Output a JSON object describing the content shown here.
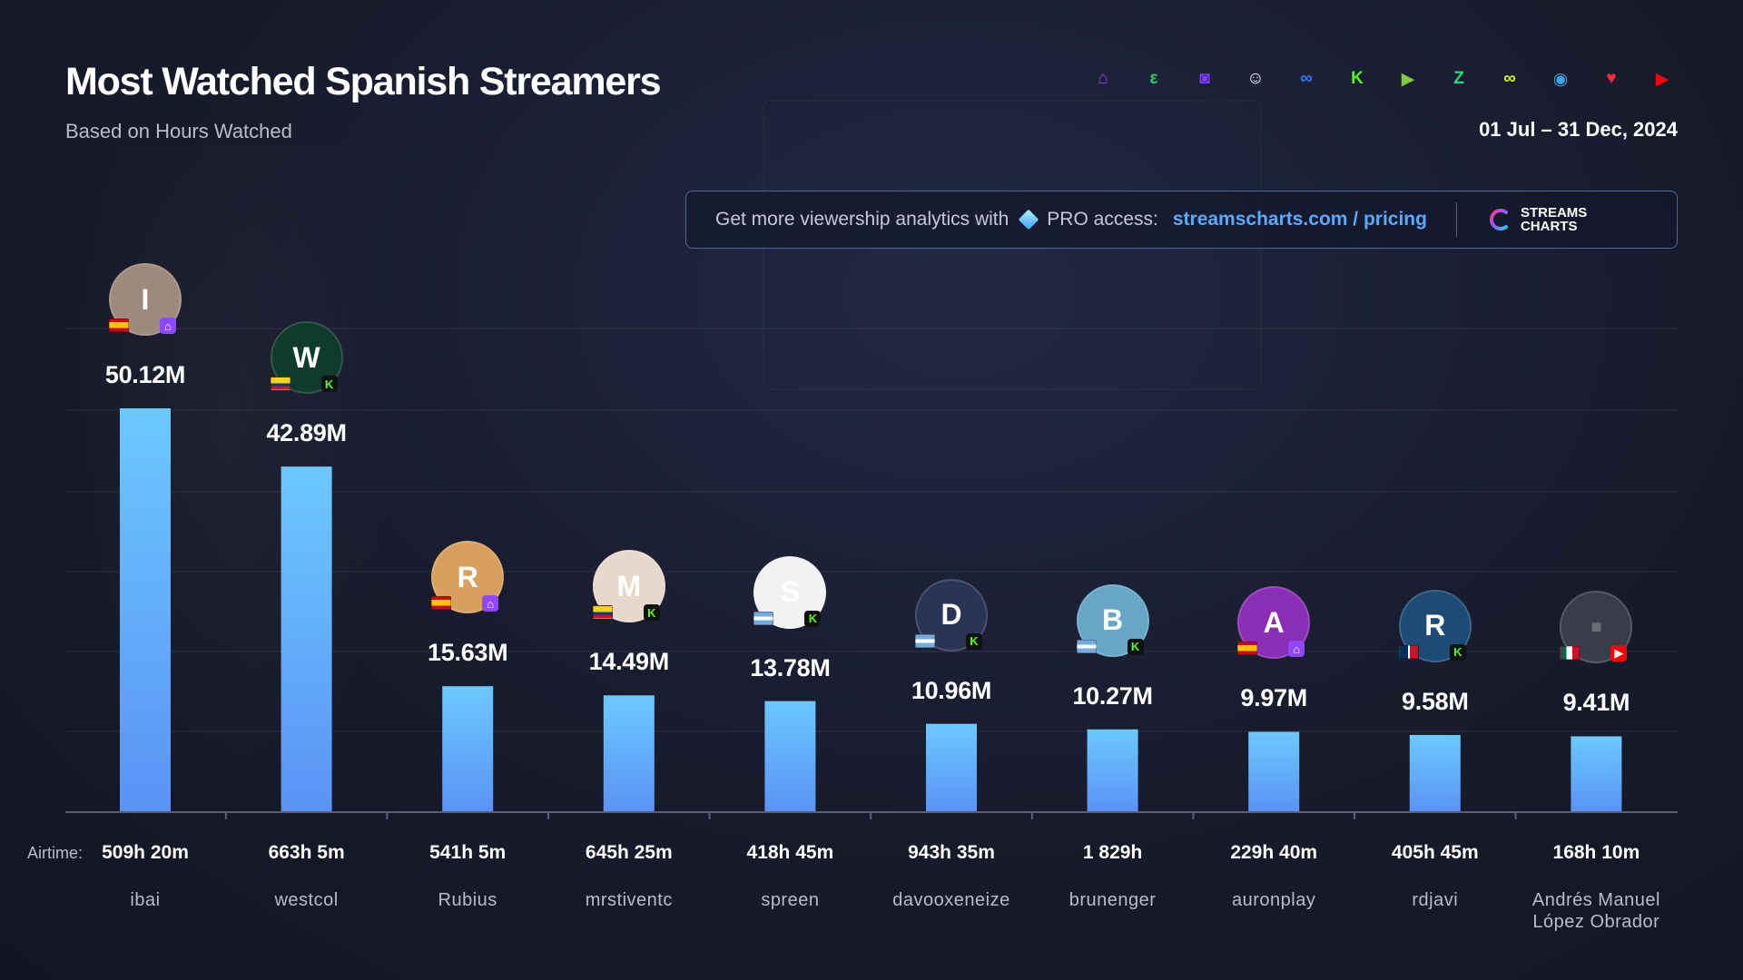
{
  "header": {
    "title": "Most Watched Spanish Streamers",
    "subtitle": "Based on Hours Watched",
    "date_range": "01 Jul – 31 Dec, 2024"
  },
  "platforms": [
    {
      "name": "twitch-icon",
      "color": "#9146ff",
      "glyph": "⌂"
    },
    {
      "name": "trovo-icon",
      "color": "#19d66b",
      "glyph": "ε"
    },
    {
      "name": "vkplay-icon",
      "color": "#7d3bff",
      "glyph": "◙"
    },
    {
      "name": "bigo-icon",
      "color": "#e9f3ff",
      "glyph": "☺"
    },
    {
      "name": "afreeca-icon",
      "color": "#2f7dff",
      "glyph": "∞"
    },
    {
      "name": "kick-icon",
      "color": "#53fc18",
      "glyph": "K"
    },
    {
      "name": "rumble-icon",
      "color": "#85c742",
      "glyph": "▶"
    },
    {
      "name": "zhanqi-icon",
      "color": "#23d97a",
      "glyph": "Z"
    },
    {
      "name": "infinity-icon",
      "color": "#d6ff00",
      "glyph": "∞"
    },
    {
      "name": "steam-icon",
      "color": "#3ba3e0",
      "glyph": "◉"
    },
    {
      "name": "heart-icon",
      "color": "#ff2c3c",
      "glyph": "♥"
    },
    {
      "name": "youtube-icon",
      "color": "#ff0000",
      "glyph": "▶"
    }
  ],
  "promo": {
    "text": "Get more viewership analytics with",
    "pro": "PRO access:",
    "link": "streamscharts.com / pricing",
    "brand_line1": "STREAMS",
    "brand_line2": "CHARTS"
  },
  "airtime_prefix": "Airtime:",
  "colors": {
    "bar_top": "#6cc8ff",
    "bar_bottom": "#5a93f5",
    "twitch": "#9146ff",
    "kick": "#53fc18",
    "youtube": "#ff0000"
  },
  "chart_data": {
    "type": "bar",
    "title": "Most Watched Spanish Streamers",
    "subtitle": "Based on Hours Watched",
    "ylabel": "",
    "xlabel": "",
    "unit": "M hours watched",
    "ylim": [
      0,
      50.12
    ],
    "grid": true,
    "categories": [
      "ibai",
      "westcol",
      "Rubius",
      "mrstiventc",
      "spreen",
      "davooxeneize",
      "brunenger",
      "auronplay",
      "rdjavi",
      "Andrés Manuel López Obrador"
    ],
    "values": [
      50.12,
      42.89,
      15.63,
      14.49,
      13.78,
      10.96,
      10.27,
      9.97,
      9.58,
      9.41
    ],
    "value_labels": [
      "50.12M",
      "42.89M",
      "15.63M",
      "14.49M",
      "13.78M",
      "10.96M",
      "10.27M",
      "9.97M",
      "9.58M",
      "9.41M"
    ],
    "airtime": [
      "509h 20m",
      "663h 5m",
      "541h 5m",
      "645h 25m",
      "418h 45m",
      "943h 35m",
      "1 829h",
      "229h 40m",
      "405h 45m",
      "168h 10m"
    ],
    "avatars": [
      {
        "initial": "I",
        "bg": "#9d8a7c",
        "flag": "es",
        "platform": "twitch"
      },
      {
        "initial": "W",
        "bg": "#103a2c",
        "flag": "co",
        "platform": "kick"
      },
      {
        "initial": "R",
        "bg": "#d8a05c",
        "flag": "es",
        "platform": "twitch"
      },
      {
        "initial": "M",
        "bg": "#e8d8cc",
        "flag": "co",
        "platform": "kick"
      },
      {
        "initial": "S",
        "bg": "#f2f2f2",
        "flag": "ar",
        "platform": "kick"
      },
      {
        "initial": "D",
        "bg": "#2a3556",
        "flag": "ar",
        "platform": "kick"
      },
      {
        "initial": "B",
        "bg": "#66a6c6",
        "flag": "ar",
        "platform": "kick"
      },
      {
        "initial": "A",
        "bg": "#8a2fb5",
        "flag": "es",
        "platform": "twitch"
      },
      {
        "initial": "R",
        "bg": "#1c4b73",
        "flag": "do",
        "platform": "kick"
      },
      {
        "initial": "",
        "bg": "#3a3d49",
        "flag": "mx",
        "platform": "youtube"
      }
    ]
  }
}
